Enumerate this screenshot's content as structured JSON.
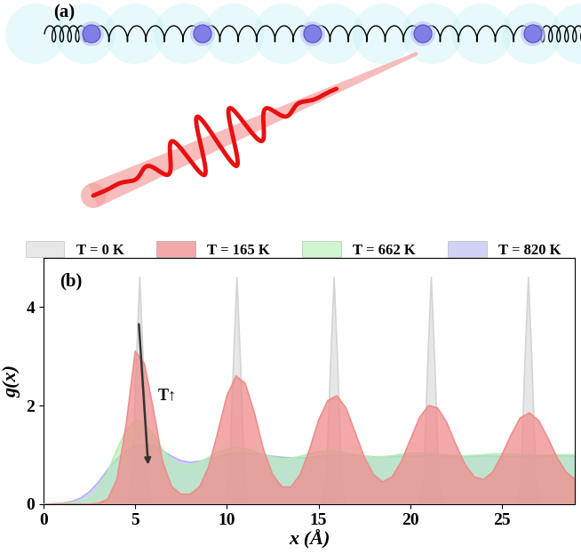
{
  "panel_a": {
    "label": "(a)"
  },
  "chart_data": {
    "type": "area",
    "panel_label": "(b)",
    "x_label": "x (Å)",
    "y_label": "g(x)",
    "annotations": [
      {
        "text": "T↑"
      }
    ],
    "x": [
      0,
      0.5,
      1,
      1.5,
      2,
      2.5,
      3,
      3.5,
      4,
      4.5,
      5,
      5.5,
      6,
      6.5,
      7,
      7.5,
      8,
      8.5,
      9,
      9.5,
      10,
      10.5,
      11,
      11.5,
      12,
      12.5,
      13,
      13.5,
      14,
      14.5,
      15,
      15.5,
      16,
      16.5,
      17,
      17.5,
      18,
      18.5,
      19,
      19.5,
      20,
      20.5,
      21,
      21.5,
      22,
      22.5,
      23,
      23.5,
      24,
      24.5,
      25,
      25.5,
      26,
      26.5,
      27,
      27.5,
      28,
      28.5,
      29
    ],
    "series": [
      {
        "name": "T = 0 K",
        "color": "#d4d4d4",
        "x": [
          0,
          4.65,
          4.85,
          5.05,
          5.25,
          5.45,
          5.65,
          5.85,
          9.95,
          10.15,
          10.35,
          10.55,
          10.75,
          10.95,
          11.15,
          15.25,
          15.45,
          15.65,
          15.85,
          16.05,
          16.25,
          16.45,
          20.55,
          20.75,
          20.95,
          21.15,
          21.35,
          21.55,
          21.75,
          25.85,
          26.05,
          26.25,
          26.45,
          26.65,
          26.85,
          27.05,
          29
        ],
        "values": [
          0,
          0,
          0.6,
          2.8,
          4.6,
          2.8,
          0.6,
          0,
          0,
          0.6,
          2.8,
          4.6,
          2.8,
          0.6,
          0,
          0,
          0.6,
          2.8,
          4.6,
          2.8,
          0.6,
          0,
          0,
          0.6,
          2.8,
          4.6,
          2.8,
          0.6,
          0,
          0,
          0.6,
          2.8,
          4.6,
          2.8,
          0.6,
          0,
          0
        ]
      },
      {
        "name": "T = 165 K",
        "color": "#f08c8c",
        "values": [
          0,
          0,
          0,
          0,
          0,
          0,
          0.02,
          0.1,
          0.5,
          1.6,
          3.1,
          2.85,
          1.9,
          0.85,
          0.35,
          0.2,
          0.2,
          0.35,
          0.75,
          1.45,
          2.2,
          2.6,
          2.45,
          1.85,
          1.1,
          0.6,
          0.35,
          0.35,
          0.6,
          1.1,
          1.7,
          2.1,
          2.2,
          1.95,
          1.45,
          0.95,
          0.6,
          0.45,
          0.55,
          0.85,
          1.3,
          1.75,
          2.0,
          1.95,
          1.65,
          1.2,
          0.8,
          0.55,
          0.5,
          0.65,
          1.0,
          1.4,
          1.75,
          1.85,
          1.7,
          1.35,
          0.95,
          0.65,
          0.5
        ]
      },
      {
        "name": "T = 662 K",
        "color": "#b0f0b0",
        "values": [
          0,
          0,
          0.01,
          0.02,
          0.05,
          0.12,
          0.3,
          0.65,
          1.1,
          1.5,
          1.7,
          1.65,
          1.4,
          1.1,
          0.88,
          0.78,
          0.78,
          0.85,
          0.95,
          1.05,
          1.12,
          1.15,
          1.13,
          1.07,
          1.0,
          0.95,
          0.92,
          0.93,
          0.97,
          1.02,
          1.06,
          1.08,
          1.07,
          1.04,
          1.0,
          0.97,
          0.95,
          0.96,
          0.98,
          1.01,
          1.03,
          1.04,
          1.03,
          1.01,
          0.99,
          0.98,
          0.98,
          0.99,
          1.0,
          1.02,
          1.02,
          1.02,
          1.01,
          1.0,
          0.99,
          0.99,
          1.0,
          1.0,
          1.0
        ]
      },
      {
        "name": "T = 820 K",
        "color": "#b4b4f0",
        "values": [
          0,
          0.01,
          0.02,
          0.05,
          0.12,
          0.25,
          0.45,
          0.7,
          0.92,
          1.08,
          1.18,
          1.22,
          1.18,
          1.08,
          0.97,
          0.88,
          0.85,
          0.87,
          0.92,
          0.97,
          1.01,
          1.03,
          1.03,
          1.02,
          1.0,
          0.97,
          0.95,
          0.94,
          0.94,
          0.95,
          0.97,
          0.98,
          0.99,
          0.99,
          0.98,
          0.97,
          0.96,
          0.96,
          0.96,
          0.97,
          0.98,
          0.98,
          0.98,
          0.97,
          0.96,
          0.96,
          0.96,
          0.97,
          0.98,
          0.98,
          0.97,
          0.97,
          0.97,
          0.97,
          0.97,
          0.97,
          0.98,
          0.98,
          0.97
        ]
      }
    ],
    "xlim": [
      0,
      29
    ],
    "ylim": [
      0,
      5
    ],
    "xticks": [
      0,
      5,
      10,
      15,
      20,
      25
    ],
    "yticks": [
      0,
      2,
      4
    ],
    "legend": "upper center"
  }
}
